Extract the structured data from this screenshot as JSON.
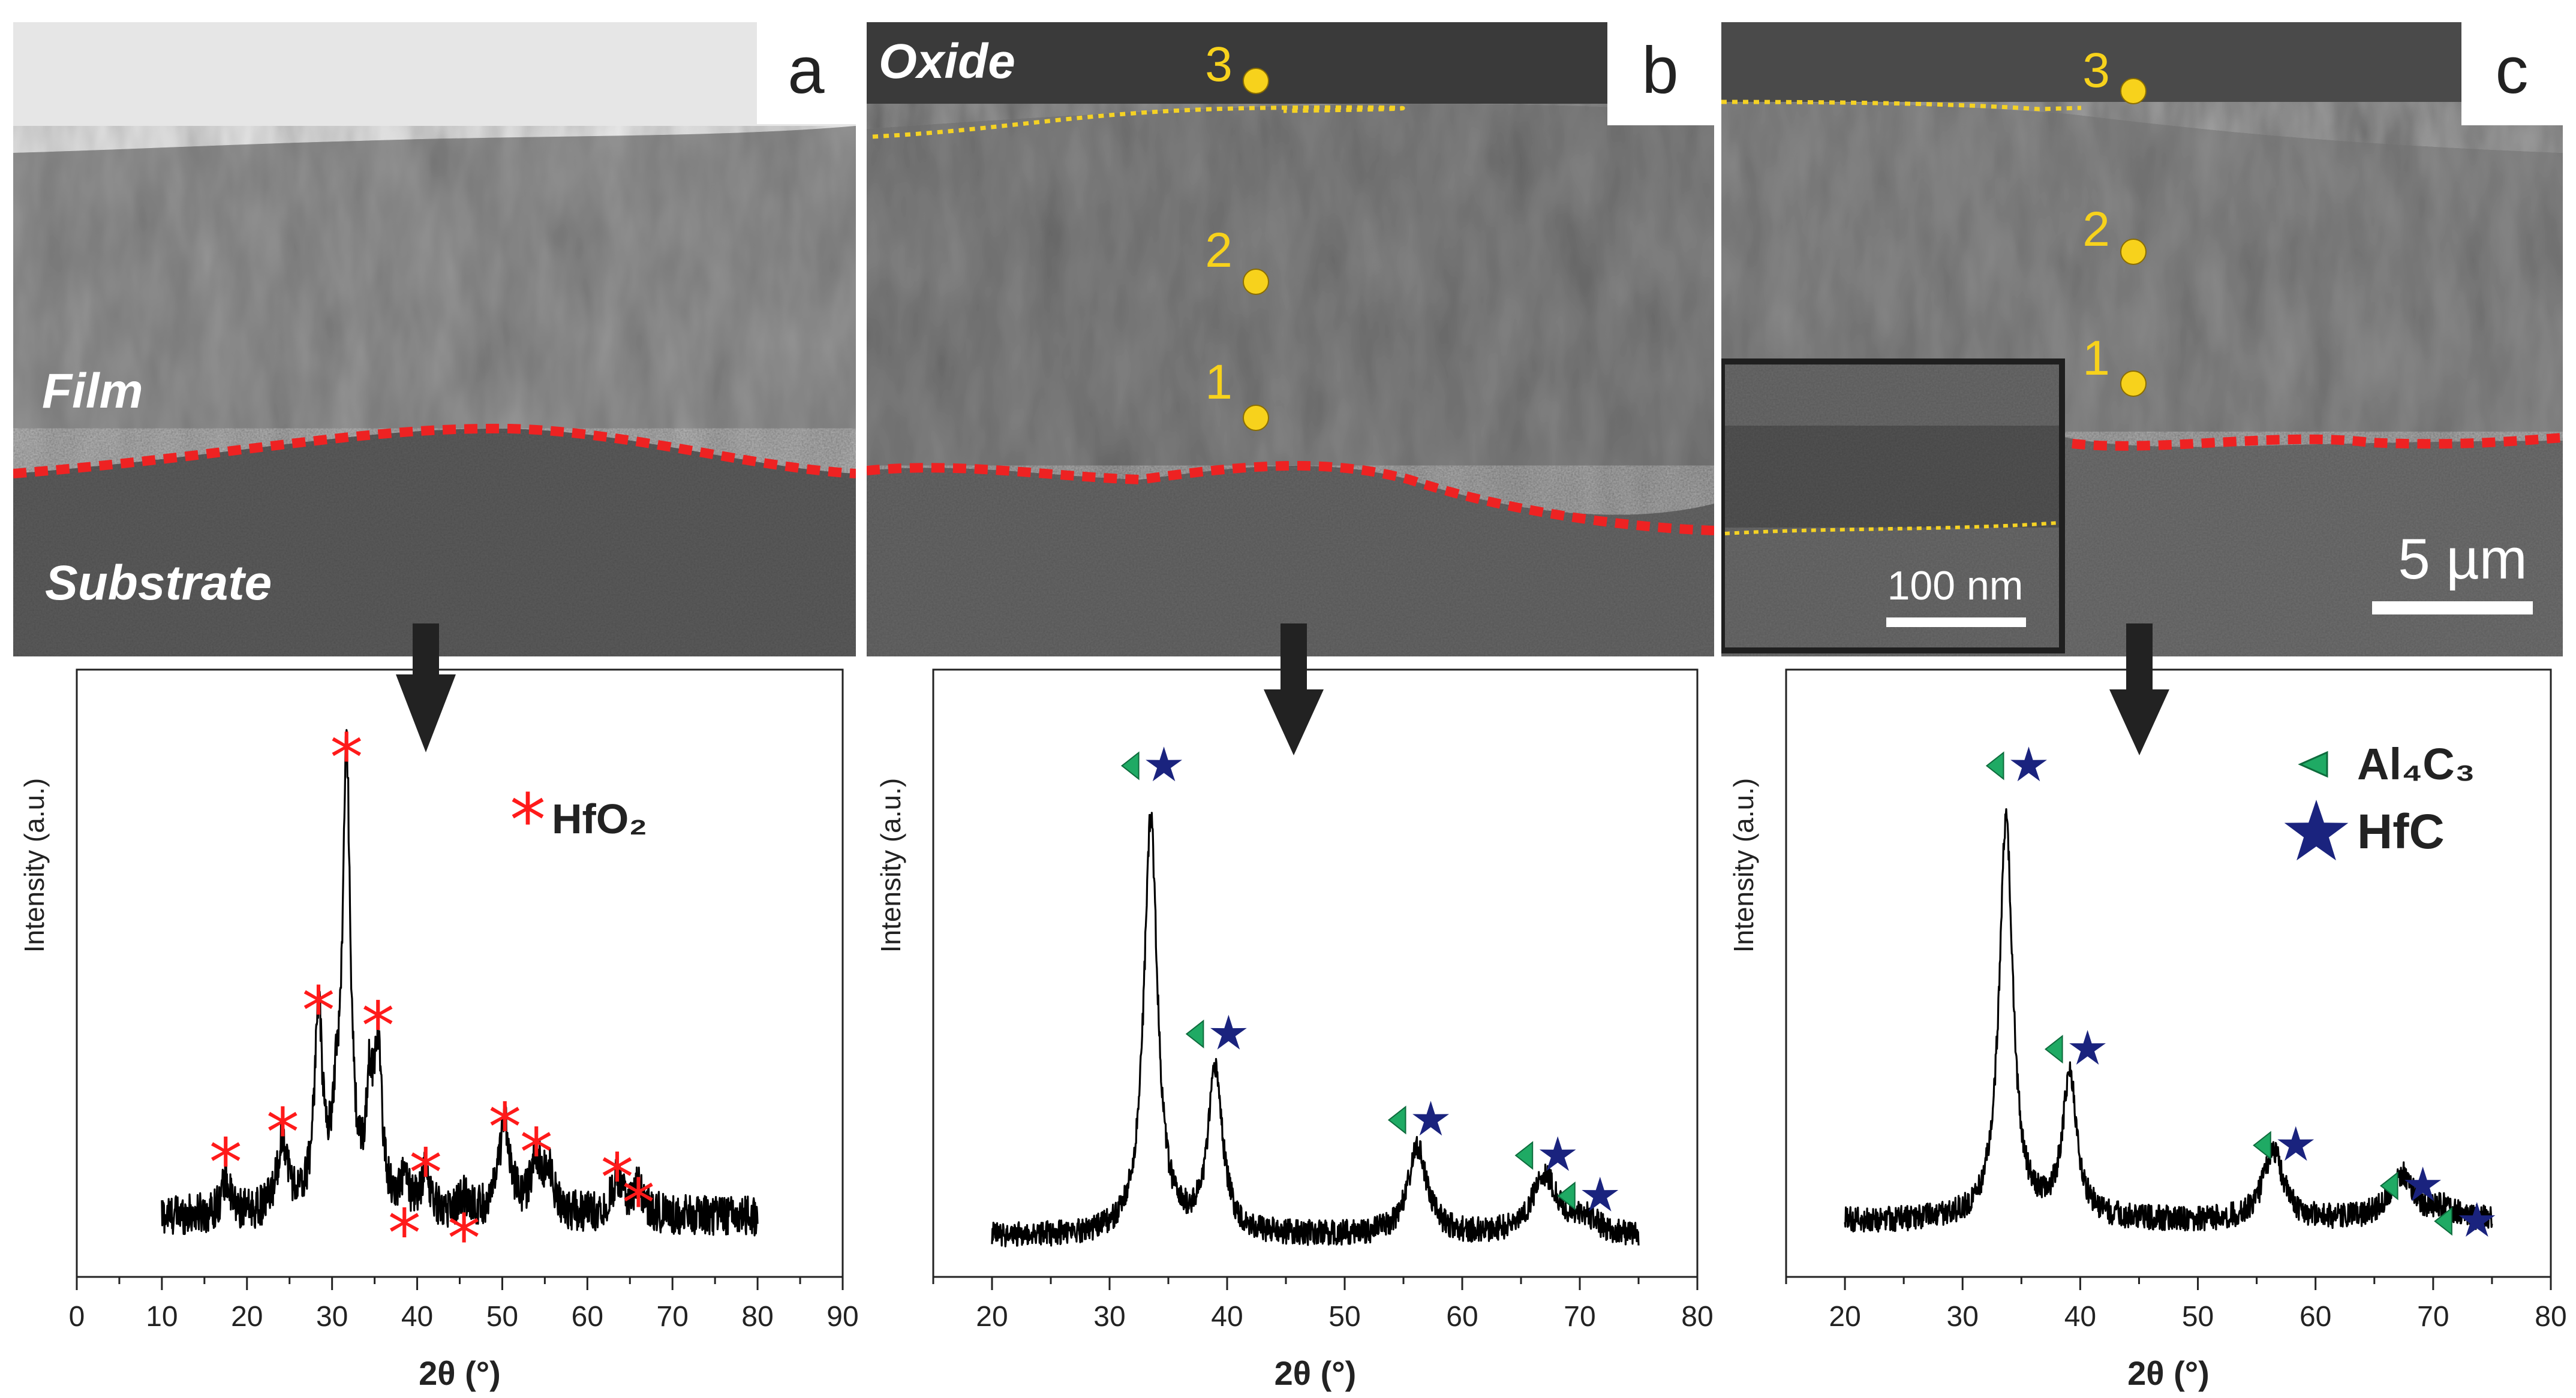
{
  "colors": {
    "hfo2_marker": "#ff1a1a",
    "al4c3_marker": "#1faa64",
    "hfc_marker": "#1a237e",
    "interface_line": "#ee2222",
    "oxide_line": "#f5d224",
    "point_marker": "#f7d21c",
    "trace": "#000000"
  },
  "sem": {
    "panels": [
      {
        "letter": "a",
        "labels": [
          "Film",
          "Substrate"
        ]
      },
      {
        "letter": "b",
        "labels": [
          "Oxide"
        ],
        "points": [
          "1",
          "2",
          "3"
        ]
      },
      {
        "letter": "c",
        "points": [
          "1",
          "2",
          "3"
        ],
        "inset_scalebar": "100 nm",
        "scalebar": "5 µm"
      }
    ]
  },
  "legends": {
    "a": {
      "hfo2": "HfO₂"
    },
    "c": {
      "al4c3": "Al₄C₃",
      "hfc": "HfC"
    }
  },
  "chart_data": [
    {
      "type": "line",
      "panel": "a",
      "xlabel": "2θ (°)",
      "ylabel": "Intensity (a.u.)",
      "xlim": [
        0,
        90
      ],
      "xticks": [
        0,
        10,
        20,
        30,
        40,
        50,
        60,
        70,
        80,
        90
      ],
      "x_range": [
        10,
        80
      ],
      "baseline": 12,
      "noise": 4,
      "peaks": [
        {
          "x": 17.5,
          "h": 7,
          "w": 0.6
        },
        {
          "x": 24.2,
          "h": 14,
          "w": 0.8
        },
        {
          "x": 28.4,
          "h": 38,
          "w": 0.6
        },
        {
          "x": 30.5,
          "h": 14,
          "w": 0.6
        },
        {
          "x": 31.7,
          "h": 88,
          "w": 0.55
        },
        {
          "x": 34.4,
          "h": 20,
          "w": 0.5
        },
        {
          "x": 35.4,
          "h": 30,
          "w": 0.55
        },
        {
          "x": 38.5,
          "h": 6,
          "w": 0.6
        },
        {
          "x": 41.0,
          "h": 8,
          "w": 0.6
        },
        {
          "x": 45.5,
          "h": 3,
          "w": 0.8
        },
        {
          "x": 50.3,
          "h": 18,
          "w": 0.8
        },
        {
          "x": 54.0,
          "h": 10,
          "w": 0.8
        },
        {
          "x": 55.5,
          "h": 7,
          "w": 0.7
        },
        {
          "x": 63.5,
          "h": 7,
          "w": 0.8
        },
        {
          "x": 66.0,
          "h": 5,
          "w": 0.8
        }
      ],
      "markers": [
        {
          "x": 17.5,
          "label": "HfO2",
          "y": 24
        },
        {
          "x": 24.2,
          "label": "HfO2",
          "y": 30
        },
        {
          "x": 28.4,
          "label": "HfO2",
          "y": 54
        },
        {
          "x": 31.7,
          "label": "HfO2",
          "y": 104
        },
        {
          "x": 35.4,
          "label": "HfO2",
          "y": 51
        },
        {
          "x": 38.5,
          "label": "HfO2",
          "y": 10
        },
        {
          "x": 41.0,
          "label": "HfO2",
          "y": 22
        },
        {
          "x": 45.5,
          "label": "HfO2",
          "y": 9
        },
        {
          "x": 50.3,
          "label": "HfO2",
          "y": 31
        },
        {
          "x": 54.0,
          "label": "HfO2",
          "y": 26
        },
        {
          "x": 63.5,
          "label": "HfO2",
          "y": 21
        },
        {
          "x": 66.0,
          "label": "HfO2",
          "y": 16
        }
      ]
    },
    {
      "type": "line",
      "panel": "b",
      "xlabel": "2θ (°)",
      "ylabel": "Intensity (a.u.)",
      "xlim": [
        15,
        80
      ],
      "xticks": [
        20,
        30,
        40,
        50,
        60,
        70,
        80
      ],
      "x_range": [
        20,
        75
      ],
      "baseline": 8,
      "noise": 2.5,
      "peaks": [
        {
          "x": 33.5,
          "h": 82,
          "w": 0.7
        },
        {
          "x": 39.0,
          "h": 32,
          "w": 0.75
        },
        {
          "x": 56.2,
          "h": 17,
          "w": 1.0
        },
        {
          "x": 67.0,
          "h": 12,
          "w": 1.3
        },
        {
          "x": 70.5,
          "h": 3,
          "w": 1.2
        }
      ],
      "markers": [
        {
          "x": 33.5,
          "label": "Al4C3+HfC",
          "y": 101
        },
        {
          "x": 39.0,
          "label": "Al4C3+HfC",
          "y": 48
        },
        {
          "x": 56.2,
          "label": "Al4C3+HfC",
          "y": 31
        },
        {
          "x": 67.0,
          "label": "Al4C3+HfC",
          "y": 24
        },
        {
          "x": 70.6,
          "label": "Al4C3+HfC",
          "y": 16
        }
      ]
    },
    {
      "type": "line",
      "panel": "c",
      "xlabel": "2θ (°)",
      "ylabel": "Intensity (a.u.)",
      "xlim": [
        15,
        80
      ],
      "xticks": [
        20,
        30,
        40,
        50,
        60,
        70,
        80
      ],
      "x_range": [
        20,
        75
      ],
      "baseline": 11,
      "noise": 2.5,
      "peaks": [
        {
          "x": 33.7,
          "h": 79,
          "w": 0.7
        },
        {
          "x": 39.1,
          "h": 28,
          "w": 0.75
        },
        {
          "x": 56.4,
          "h": 14,
          "w": 1.0
        },
        {
          "x": 67.3,
          "h": 9,
          "w": 1.3
        },
        {
          "x": 71.0,
          "h": 2,
          "w": 1.2
        }
      ],
      "markers": [
        {
          "x": 34.5,
          "label": "Al4C3+HfC",
          "y": 101
        },
        {
          "x": 39.5,
          "label": "Al4C3+HfC",
          "y": 45
        },
        {
          "x": 57.2,
          "label": "Al4C3+HfC",
          "y": 26
        },
        {
          "x": 68.0,
          "label": "Al4C3+HfC",
          "y": 18
        },
        {
          "x": 72.6,
          "label": "Al4C3+HfC",
          "y": 11
        }
      ]
    }
  ]
}
